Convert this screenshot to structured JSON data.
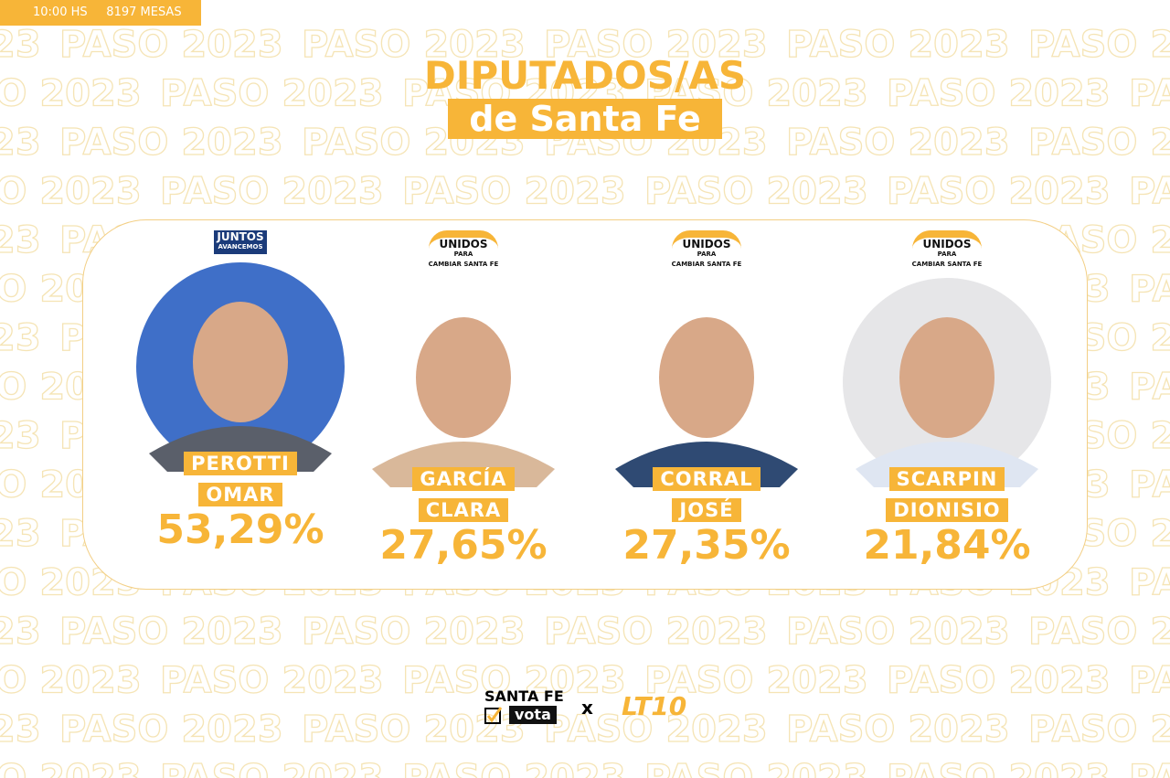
{
  "header": {
    "time": "10:00 HS",
    "mesas": "8197 MESAS"
  },
  "watermark": "PASO 2023",
  "title": {
    "line1": "DIPUTADOS/AS",
    "line2": "de Santa Fe"
  },
  "candidates": [
    {
      "party": [
        "JUNTOS",
        "AVANCEMOS"
      ],
      "surname": "PEROTTI",
      "name": "OMAR",
      "percent": "53,29%",
      "photo_bg": "#3f6fc8",
      "shirt": "#5a5f6a"
    },
    {
      "party": [
        "UNIDOS",
        "PARA",
        "CAMBIAR SANTA FE"
      ],
      "surname": "GARCÍA",
      "name": "CLARA",
      "percent": "27,65%",
      "photo_bg": "#ffffff",
      "shirt": "#d9b89a"
    },
    {
      "party": [
        "UNIDOS",
        "PARA",
        "CAMBIAR SANTA FE"
      ],
      "surname": "CORRAL",
      "name": "JOSÉ",
      "percent": "27,35%",
      "photo_bg": "#ffffff",
      "shirt": "#2f4a73"
    },
    {
      "party": [
        "UNIDOS",
        "PARA",
        "CAMBIAR SANTA FE"
      ],
      "surname": "SCARPIN",
      "name": "DIONISIO",
      "percent": "21,84%",
      "photo_bg": "#e6e6e8",
      "shirt": "#dfe6f2"
    }
  ],
  "footer": {
    "brand1": "SANTA FE",
    "brand2": "vota",
    "sep": "x",
    "brand3": "LT10"
  }
}
